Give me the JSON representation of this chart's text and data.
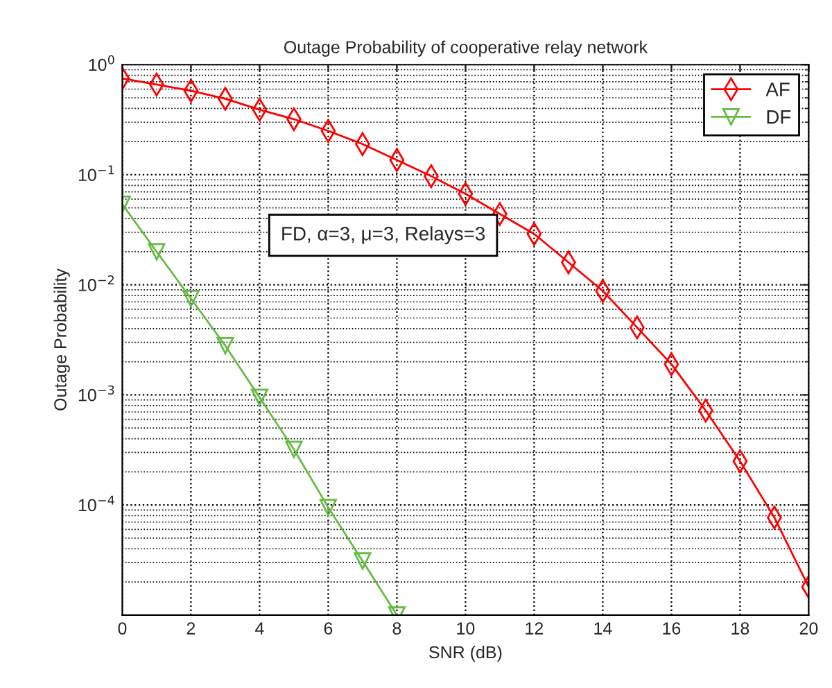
{
  "chart_data": {
    "type": "line",
    "title": "Outage Probability of cooperative relay network",
    "xlabel": "SNR (dB)",
    "ylabel": "Outage Probability",
    "x": [
      0,
      1,
      2,
      3,
      4,
      5,
      6,
      7,
      8,
      9,
      10,
      11,
      12,
      13,
      14,
      15,
      16,
      17,
      18,
      19,
      20
    ],
    "series": [
      {
        "name": "AF",
        "color": "#ff0000",
        "marker": "diamond",
        "values": [
          0.75,
          0.66,
          0.58,
          0.49,
          0.39,
          0.32,
          0.25,
          0.19,
          0.136,
          0.097,
          0.067,
          0.044,
          0.029,
          0.016,
          0.0088,
          0.0041,
          0.0019,
          0.00072,
          0.00025,
          7.7e-05,
          1.8e-05
        ]
      },
      {
        "name": "DF",
        "color": "#66bb44",
        "marker": "triangle",
        "x": [
          0,
          1,
          2,
          3,
          4,
          5,
          6,
          7,
          8
        ],
        "values": [
          0.054,
          0.02,
          0.0075,
          0.0028,
          0.00095,
          0.00032,
          9.5e-05,
          3.1e-05,
          1e-05
        ]
      }
    ],
    "log": "y",
    "xlim": [
      0,
      20
    ],
    "xticks": [
      0,
      2,
      4,
      6,
      8,
      10,
      12,
      14,
      16,
      18,
      20
    ],
    "ylim": [
      1e-05,
      1
    ],
    "yticks": [
      {
        "value": 1,
        "label": "10$^{0}$"
      },
      {
        "value": 0.1,
        "label": "10$^{−1}$"
      },
      {
        "value": 0.01,
        "label": "10$^{−2}$"
      },
      {
        "value": 0.001,
        "label": "10$^{−3}$"
      },
      {
        "value": 0.0001,
        "label": "10$^{−4}$"
      }
    ],
    "annotations": [
      "FD, α=3, μ=3, Relays=3"
    ],
    "grid": true,
    "legend": "top right",
    "line_style": "solid"
  }
}
